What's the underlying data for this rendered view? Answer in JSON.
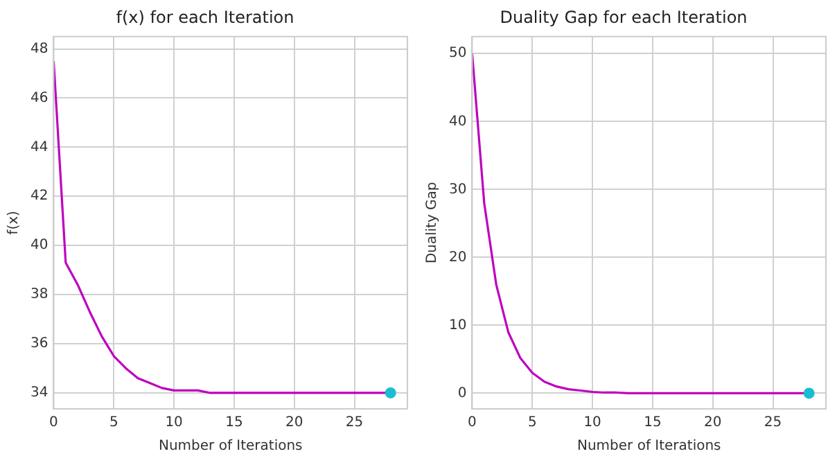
{
  "chart_data": [
    {
      "type": "line",
      "title": "f(x) for each Iteration",
      "xlabel": "Number of Iterations",
      "ylabel": "f(x)",
      "xlim": [
        0,
        29.4
      ],
      "xticks": [
        0,
        5,
        10,
        15,
        20,
        25
      ],
      "ylim": [
        33.35,
        48.5
      ],
      "yticks": [
        34,
        36,
        38,
        40,
        42,
        44,
        46,
        48
      ],
      "grid": true,
      "legend": false,
      "marker": "none",
      "line_style": "solid",
      "series": [
        {
          "color": "#bf00bf",
          "x": [
            0,
            1,
            2,
            3,
            4,
            5,
            6,
            7,
            8,
            9,
            10,
            11,
            12,
            13,
            14,
            15,
            16,
            17,
            18,
            19,
            20,
            21,
            22,
            23,
            24,
            25,
            26,
            27,
            28
          ],
          "values": [
            47.5,
            39.3,
            38.4,
            37.3,
            36.3,
            35.5,
            35.0,
            34.6,
            34.4,
            34.2,
            34.1,
            34.1,
            34.1,
            34.0,
            34.0,
            34.0,
            34.0,
            34.0,
            34.0,
            34.0,
            34.0,
            34.0,
            34.0,
            34.0,
            34.0,
            34.0,
            34.0,
            34.0,
            34.0
          ]
        },
        {
          "type": "scatter",
          "color": "#17becf",
          "marker": "circle",
          "x": [
            28
          ],
          "values": [
            34.0
          ]
        }
      ]
    },
    {
      "type": "line",
      "title": "Duality Gap for each Iteration",
      "xlabel": "Number of Iterations",
      "ylabel": "Duality Gap",
      "xlim": [
        0,
        29.4
      ],
      "xticks": [
        0,
        5,
        10,
        15,
        20,
        25
      ],
      "ylim": [
        -2.3,
        52.5
      ],
      "yticks": [
        0,
        10,
        20,
        30,
        40,
        50
      ],
      "grid": true,
      "legend": false,
      "marker": "none",
      "line_style": "solid",
      "series": [
        {
          "color": "#bf00bf",
          "x": [
            0,
            1,
            2,
            3,
            4,
            5,
            6,
            7,
            8,
            9,
            10,
            11,
            12,
            13,
            14,
            15,
            16,
            17,
            18,
            19,
            20,
            21,
            22,
            23,
            24,
            25,
            26,
            27,
            28
          ],
          "values": [
            50,
            28,
            16,
            9,
            5.2,
            3.0,
            1.7,
            1.0,
            0.6,
            0.4,
            0.2,
            0.1,
            0.1,
            0,
            0,
            0,
            0,
            0,
            0,
            0,
            0,
            0,
            0,
            0,
            0,
            0,
            0,
            0,
            0
          ]
        },
        {
          "type": "scatter",
          "color": "#17becf",
          "marker": "circle",
          "x": [
            28
          ],
          "values": [
            0
          ]
        }
      ]
    }
  ]
}
